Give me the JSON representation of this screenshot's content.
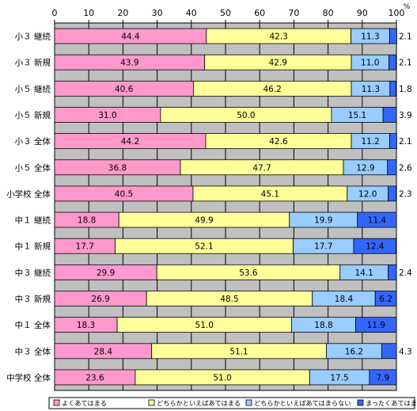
{
  "chart_data": {
    "type": "bar",
    "orientation": "horizontal",
    "stacked": true,
    "xlim": [
      0,
      100
    ],
    "x_ticks": [
      0,
      10,
      20,
      30,
      40,
      50,
      60,
      70,
      80,
      90,
      100
    ],
    "unit_label": "%",
    "grid": true,
    "legend_position": "bottom",
    "categories": [
      "小３ 継続",
      "小３ 新規",
      "小５ 継続",
      "小５ 新規",
      "小３ 全体",
      "小５ 全体",
      "小学校 全体",
      "中１ 継続",
      "中１ 新規",
      "中３ 継続",
      "中３ 新規",
      "中１ 全体",
      "中３ 全体",
      "中学校 全体"
    ],
    "series": [
      {
        "name": "よくあてはまる",
        "color": "#ff99cc",
        "values": [
          44.4,
          43.9,
          40.6,
          31.0,
          44.2,
          36.8,
          40.5,
          18.8,
          17.7,
          29.9,
          26.9,
          18.3,
          28.4,
          23.6
        ]
      },
      {
        "name": "どちらかといえばあてはまる",
        "color": "#ffff99",
        "values": [
          42.3,
          42.9,
          46.2,
          50.0,
          42.6,
          47.7,
          45.1,
          49.9,
          52.1,
          53.6,
          48.5,
          51.0,
          51.1,
          51.0
        ]
      },
      {
        "name": "どちらかといえばあてはまらない",
        "color": "#99ccff",
        "values": [
          11.3,
          11.0,
          11.3,
          15.1,
          11.2,
          12.9,
          12.0,
          19.9,
          17.7,
          14.1,
          18.4,
          18.8,
          16.2,
          17.5
        ]
      },
      {
        "name": "まったくあてはまらない",
        "color": "#3366ff",
        "values": [
          2.1,
          2.1,
          1.8,
          3.9,
          2.1,
          2.6,
          2.3,
          11.4,
          12.4,
          2.4,
          6.2,
          11.9,
          4.3,
          7.9
        ]
      }
    ]
  }
}
